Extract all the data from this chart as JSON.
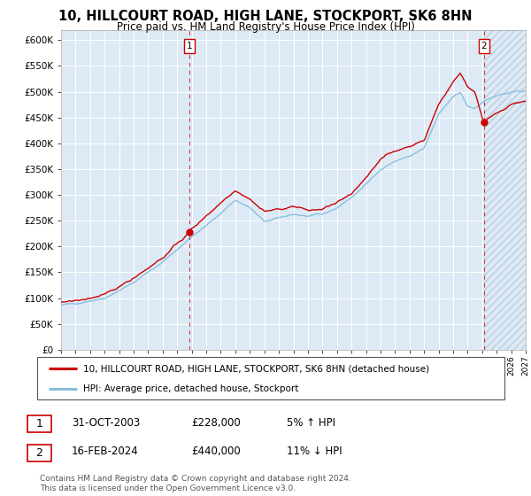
{
  "title": "10, HILLCOURT ROAD, HIGH LANE, STOCKPORT, SK6 8HN",
  "subtitle": "Price paid vs. HM Land Registry's House Price Index (HPI)",
  "x_start_year": 1995,
  "x_end_year": 2027,
  "ylim": [
    0,
    620000
  ],
  "yticks": [
    0,
    50000,
    100000,
    150000,
    200000,
    250000,
    300000,
    350000,
    400000,
    450000,
    500000,
    550000,
    600000
  ],
  "hpi_color": "#89bfdf",
  "price_color": "#cc0000",
  "plot_bg": "#ddeaf5",
  "point1_year": 2003.83,
  "point1_value": 228000,
  "point2_year": 2024.12,
  "point2_value": 440000,
  "legend_house_label": "10, HILLCOURT ROAD, HIGH LANE, STOCKPORT, SK6 8HN (detached house)",
  "legend_hpi_label": "HPI: Average price, detached house, Stockport",
  "table_row1": [
    "1",
    "31-OCT-2003",
    "£228,000",
    "5% ↑ HPI"
  ],
  "table_row2": [
    "2",
    "16-FEB-2024",
    "£440,000",
    "11% ↓ HPI"
  ],
  "footer": "Contains HM Land Registry data © Crown copyright and database right 2024.\nThis data is licensed under the Open Government Licence v3.0."
}
